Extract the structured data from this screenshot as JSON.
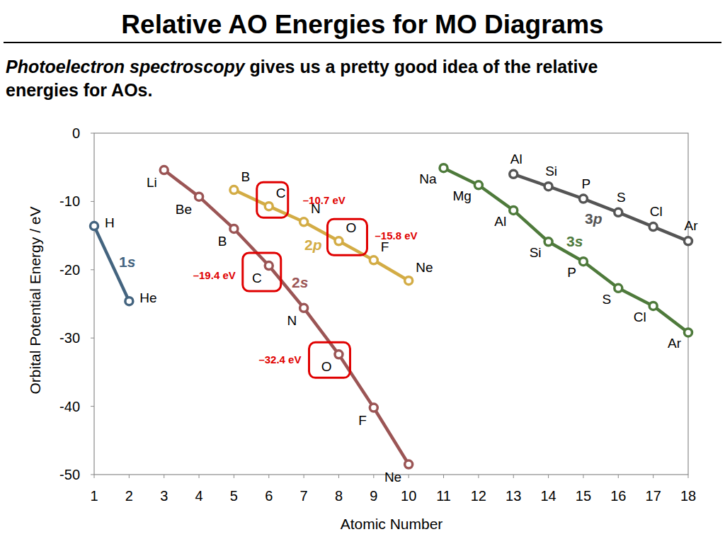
{
  "chart_data": {
    "type": "line",
    "title": "Relative AO Energies for MO Diagrams",
    "subtitle": [
      "Photoelectron spectroscopy",
      " gives us a pretty good idea of the relative",
      "energies for AOs."
    ],
    "x_label": "Atomic Number",
    "y_label": "Orbital Potential Energy / eV",
    "xlim": [
      1,
      18
    ],
    "xticks": [
      1,
      2,
      3,
      4,
      5,
      6,
      7,
      8,
      9,
      10,
      11,
      12,
      13,
      14,
      15,
      16,
      17,
      18
    ],
    "ylim": [
      -50,
      0
    ],
    "yticks": [
      0,
      -10,
      -20,
      -30,
      -40,
      -50
    ],
    "grid": false,
    "marker": "circle",
    "series": [
      {
        "name": "1s",
        "color": "#44647f",
        "x": [
          1,
          2
        ],
        "values": [
          -13.6,
          -24.6
        ],
        "labels": [
          "H",
          "He"
        ]
      },
      {
        "name": "2s",
        "color": "#9b5555",
        "x": [
          3,
          4,
          5,
          6,
          7,
          8,
          9,
          10
        ],
        "values": [
          -5.4,
          -9.3,
          -14.0,
          -19.4,
          -25.6,
          -32.4,
          -40.2,
          -48.5
        ],
        "labels": [
          "Li",
          "Be",
          "B",
          "C",
          "N",
          "O",
          "F",
          "Ne"
        ]
      },
      {
        "name": "2p",
        "color": "#d3ac45",
        "x": [
          5,
          6,
          7,
          8,
          9,
          10
        ],
        "values": [
          -8.3,
          -10.7,
          -13.0,
          -15.8,
          -18.6,
          -21.6
        ],
        "labels": [
          "B",
          "C",
          "N",
          "O",
          "F",
          "Ne"
        ]
      },
      {
        "name": "3s",
        "color": "#4e7a3b",
        "x": [
          11,
          12,
          13,
          14,
          15,
          16,
          17,
          18
        ],
        "values": [
          -5.1,
          -7.6,
          -11.3,
          -15.9,
          -18.8,
          -22.7,
          -25.3,
          -29.2
        ],
        "labels": [
          "Na",
          "Mg",
          "Al",
          "Si",
          "P",
          "S",
          "Cl",
          "Ar"
        ]
      },
      {
        "name": "3p",
        "color": "#555555",
        "x": [
          13,
          14,
          15,
          16,
          17,
          18
        ],
        "values": [
          -6.0,
          -7.8,
          -9.6,
          -11.6,
          -13.7,
          -15.8
        ],
        "labels": [
          "Al",
          "Si",
          "P",
          "S",
          "Cl",
          "Ar"
        ]
      }
    ],
    "annotations": [
      {
        "x": 6,
        "y": -10.7,
        "label": "–10.7 eV"
      },
      {
        "x": 8,
        "y": -15.8,
        "label": "–15.8 eV"
      },
      {
        "x": 6,
        "y": -19.4,
        "label": "–19.4 eV"
      },
      {
        "x": 8,
        "y": -32.4,
        "label": "–32.4 eV"
      }
    ]
  }
}
